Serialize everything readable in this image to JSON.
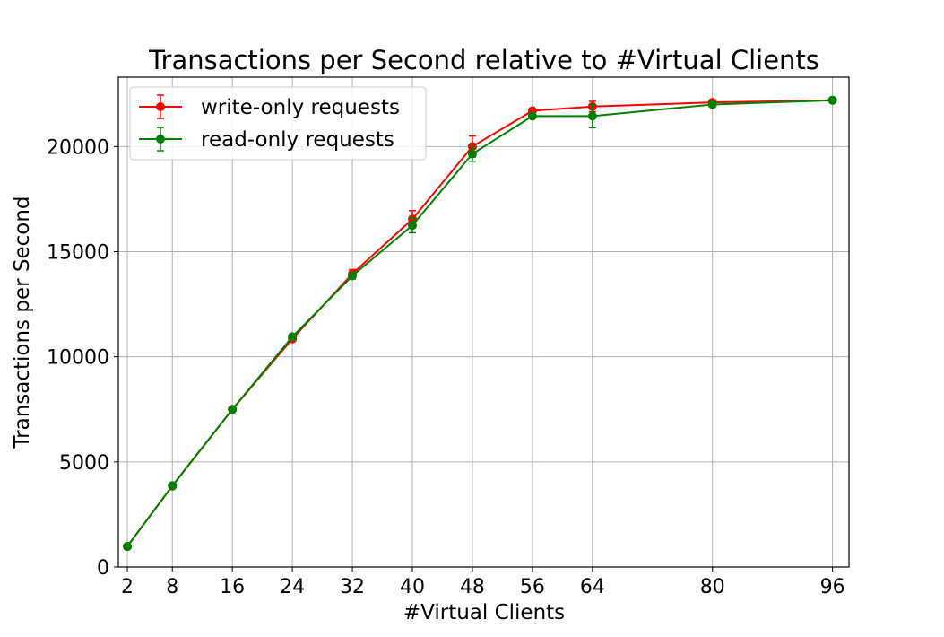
{
  "chart_data": {
    "type": "line",
    "title": "Transactions per Second relative to #Virtual Clients",
    "xlabel": "#Virtual Clients",
    "ylabel": "Transactions per Second",
    "x": [
      2,
      8,
      16,
      24,
      32,
      40,
      48,
      56,
      64,
      80,
      96
    ],
    "xticks": [
      "2",
      "8",
      "16",
      "24",
      "32",
      "40",
      "48",
      "56",
      "64",
      "80",
      "96"
    ],
    "yticks": [
      "0",
      "5000",
      "10000",
      "15000",
      "20000"
    ],
    "xlim": [
      0.8,
      98.2
    ],
    "ylim": [
      0,
      23300
    ],
    "grid": true,
    "legend_position": "upper-left",
    "series": [
      {
        "name": "write-only requests",
        "color": "#ff0000",
        "values": [
          980,
          3850,
          7500,
          10850,
          13950,
          16550,
          20000,
          21700,
          21900,
          22100,
          22200
        ],
        "errors": [
          30,
          60,
          80,
          120,
          200,
          400,
          500,
          100,
          250,
          50,
          50
        ]
      },
      {
        "name": "read-only requests",
        "color": "#008000",
        "values": [
          980,
          3870,
          7500,
          10950,
          13850,
          16250,
          19650,
          21450,
          21450,
          22000,
          22200
        ],
        "errors": [
          30,
          60,
          80,
          120,
          150,
          350,
          350,
          100,
          550,
          50,
          50
        ]
      }
    ]
  }
}
